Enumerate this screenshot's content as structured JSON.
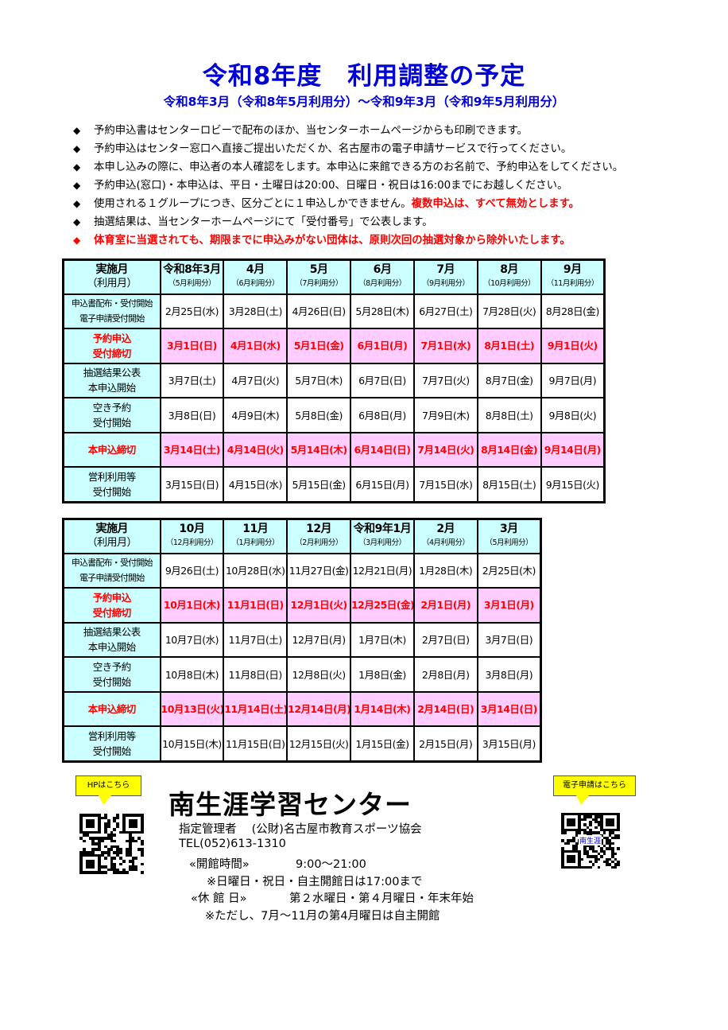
{
  "title": "令和8年度　利用調整の予定",
  "subtitle": "令和8年3月（令和8年5月利用分）～令和9年3月（令和9年5月利用分）",
  "notes": [
    {
      "text": "予約申込書はセンターロビーで配布のほか、当センターホームページからも印刷できます。",
      "red": ""
    },
    {
      "text": "予約申込はセンター窓口へ直接ご提出いただくか、名古屋市の電子申請サービスで行ってください。",
      "red": ""
    },
    {
      "text": "本申し込みの際に、申込者の本人確認をします。本申込に来館できる方のお名前で、予約申込をしてください。",
      "red": ""
    },
    {
      "text": "予約申込(窓口)・本申込は、平日・土曜日は20:00、日曜日・祝日は16:00までにお越しください。",
      "red": ""
    },
    {
      "text": "使用される１グループにつき、区分ごとに１申込しかできません。",
      "red": "複数申込は、すべて無効とします。"
    },
    {
      "text": "抽選結果は、当センターホームページにて「受付番号」で公表します。",
      "red": ""
    },
    {
      "text": "",
      "red": "体育室に当選されても、期限までに申込みがない団体は、原則次回の抽選対象から除外いたします。"
    }
  ],
  "row_labels": [
    [
      "申込書配布・受付開始",
      "電子申請受付開始"
    ],
    [
      "予約申込",
      "受付締切"
    ],
    [
      "抽選結果公表",
      "本申込開始"
    ],
    [
      "空き予約",
      "受付開始"
    ],
    [
      "本申込締切"
    ],
    [
      "営利利用等",
      "受付開始"
    ]
  ],
  "header_label": [
    "実施月",
    "（利用月）"
  ],
  "tables": [
    {
      "months": [
        [
          "令和8年3月",
          "（5月利用分）"
        ],
        [
          "4月",
          "（6月利用分）"
        ],
        [
          "5月",
          "（7月利用分）"
        ],
        [
          "6月",
          "（8月利用分）"
        ],
        [
          "7月",
          "（9月利用分）"
        ],
        [
          "8月",
          "（10月利用分）"
        ],
        [
          "9月",
          "（11月利用分）"
        ]
      ],
      "rows": [
        [
          "2月25日(水)",
          "3月28日(土)",
          "4月26日(日)",
          "5月28日(木)",
          "6月27日(土)",
          "7月28日(火)",
          "8月28日(金)"
        ],
        [
          "3月1日(日)",
          "4月1日(水)",
          "5月1日(金)",
          "6月1日(月)",
          "7月1日(水)",
          "8月1日(土)",
          "9月1日(火)"
        ],
        [
          "3月7日(土)",
          "4月7日(火)",
          "5月7日(木)",
          "6月7日(日)",
          "7月7日(火)",
          "8月7日(金)",
          "9月7日(月)"
        ],
        [
          "3月8日(日)",
          "4月9日(木)",
          "5月8日(金)",
          "6月8日(月)",
          "7月9日(木)",
          "8月8日(土)",
          "9月8日(火)"
        ],
        [
          "3月14日(土)",
          "4月14日(火)",
          "5月14日(木)",
          "6月14日(日)",
          "7月14日(火)",
          "8月14日(金)",
          "9月14日(月)"
        ],
        [
          "3月15日(日)",
          "4月15日(水)",
          "5月15日(金)",
          "6月15日(月)",
          "7月15日(水)",
          "8月15日(土)",
          "9月15日(火)"
        ]
      ]
    },
    {
      "months": [
        [
          "10月",
          "（12月利用分）"
        ],
        [
          "11月",
          "（1月利用分）"
        ],
        [
          "12月",
          "（2月利用分）"
        ],
        [
          "令和9年1月",
          "（3月利用分）"
        ],
        [
          "2月",
          "（4月利用分）"
        ],
        [
          "3月",
          "（5月利用分）"
        ]
      ],
      "rows": [
        [
          "9月26日(土)",
          "10月28日(水)",
          "11月27日(金)",
          "12月21日(月)",
          "1月28日(木)",
          "2月25日(木)"
        ],
        [
          "10月1日(木)",
          "11月1日(日)",
          "12月1日(火)",
          "12月25日(金)",
          "2月1日(月)",
          "3月1日(月)"
        ],
        [
          "10月7日(水)",
          "11月7日(土)",
          "12月7日(月)",
          "1月7日(木)",
          "2月7日(日)",
          "3月7日(日)"
        ],
        [
          "10月8日(木)",
          "11月8日(日)",
          "12月8日(火)",
          "1月8日(金)",
          "2月8日(月)",
          "3月8日(月)"
        ],
        [
          "10月13日(火)",
          "11月14日(土)",
          "12月14日(月)",
          "1月14日(木)",
          "2月14日(日)",
          "3月14日(日)"
        ],
        [
          "10月15日(木)",
          "11月15日(日)",
          "12月15日(火)",
          "1月15日(金)",
          "2月15日(月)",
          "3月15日(月)"
        ]
      ]
    }
  ],
  "highlight_color": "#ffccff",
  "label_color": "#ccffff",
  "footer": {
    "hp_callout": "HPはこちら",
    "eapp_callout": "電子申請はこちら",
    "qr_center_text": "南生涯",
    "center_name": "南生涯学習センター",
    "manager": "指定管理者　 (公財)名古屋市教育スポーツ協会",
    "tel": "TEL(052)613-1310",
    "hours_label": "«開館時間»",
    "hours": "9:00～21:00",
    "hours_note": "※日曜日・祝日・自主開館日は17:00まで",
    "closed_label": "«休 館 日»",
    "closed": "第２水曜日・第４月曜日・年末年始",
    "closed_note": "※ただし、7月～11月の第4月曜日は自主開館"
  }
}
